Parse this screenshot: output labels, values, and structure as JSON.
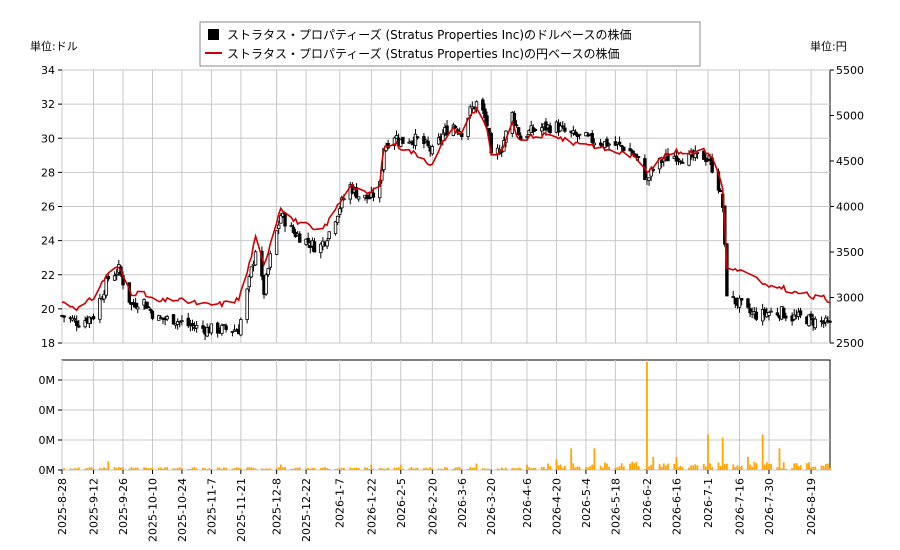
{
  "legend": {
    "usd_label": "ストラタス・プロパティーズ (Stratus Properties Inc)のドルベースの株価",
    "jpy_label": "ストラタス・プロパティーズ (Stratus Properties Inc)の円ベースの株価"
  },
  "units": {
    "left": "単位:ドル",
    "right": "単位:円"
  },
  "colors": {
    "candle": "#000000",
    "jpy_line": "#cc0000",
    "volume": "#ffa500",
    "grid": "#c8c8c8"
  },
  "chart_data": [
    {
      "type": "candlestick+line",
      "x_range": [
        "2025-08-28",
        "2026-08-28"
      ],
      "y_left": {
        "ticks": [
          18,
          20,
          22,
          24,
          26,
          28,
          30,
          32,
          34
        ],
        "range": [
          18,
          34
        ]
      },
      "y_right": {
        "ticks": [
          2500,
          3000,
          3500,
          4000,
          4500,
          5000,
          5500
        ],
        "range": [
          2500,
          5500
        ]
      },
      "x_ticks": [
        "2025-8-28",
        "2025-9-12",
        "2025-9-26",
        "2025-10-10",
        "2025-10-24",
        "2025-11-7",
        "2025-11-21",
        "2025-12-8",
        "2025-12-22",
        "2026-1-7",
        "2026-1-22",
        "2026-2-5",
        "2026-2-20",
        "2026-3-6",
        "2026-3-20",
        "2026-4-6",
        "2026-4-20",
        "2026-5-4",
        "2026-5-18",
        "2026-6-2",
        "2026-6-16",
        "2026-7-1",
        "2026-7-16",
        "2026-7-30",
        "2026-8-19"
      ],
      "usd_close_anchors": [
        [
          "2025-08-28",
          19.6
        ],
        [
          "2025-09-05",
          19.2
        ],
        [
          "2025-09-12",
          19.6
        ],
        [
          "2025-09-19",
          21.8
        ],
        [
          "2025-09-24",
          22.3
        ],
        [
          "2025-09-30",
          20.2
        ],
        [
          "2025-10-05",
          20.6
        ],
        [
          "2025-10-12",
          19.4
        ],
        [
          "2025-10-20",
          19.4
        ],
        [
          "2025-10-28",
          19.0
        ],
        [
          "2025-11-05",
          18.8
        ],
        [
          "2025-11-12",
          18.8
        ],
        [
          "2025-11-20",
          18.8
        ],
        [
          "2025-11-24",
          21.0
        ],
        [
          "2025-11-28",
          23.5
        ],
        [
          "2025-12-02",
          21.0
        ],
        [
          "2025-12-05",
          23.0
        ],
        [
          "2025-12-10",
          25.5
        ],
        [
          "2025-12-16",
          24.5
        ],
        [
          "2025-12-22",
          24.0
        ],
        [
          "2025-12-28",
          23.5
        ],
        [
          "2026-01-02",
          24.5
        ],
        [
          "2026-01-07",
          26.0
        ],
        [
          "2026-01-12",
          27.2
        ],
        [
          "2026-01-17",
          26.5
        ],
        [
          "2026-01-22",
          26.5
        ],
        [
          "2026-01-26",
          27.2
        ],
        [
          "2026-01-28",
          29.5
        ],
        [
          "2026-02-02",
          30.2
        ],
        [
          "2026-02-05",
          29.8
        ],
        [
          "2026-02-10",
          30.0
        ],
        [
          "2026-02-15",
          29.8
        ],
        [
          "2026-02-20",
          29.2
        ],
        [
          "2026-02-26",
          30.4
        ],
        [
          "2026-03-02",
          30.8
        ],
        [
          "2026-03-06",
          30.4
        ],
        [
          "2026-03-10",
          31.6
        ],
        [
          "2026-03-14",
          32.2
        ],
        [
          "2026-03-18",
          30.8
        ],
        [
          "2026-03-20",
          28.8
        ],
        [
          "2026-03-25",
          29.5
        ],
        [
          "2026-03-30",
          31.4
        ],
        [
          "2026-04-03",
          30.0
        ],
        [
          "2026-04-06",
          30.3
        ],
        [
          "2026-04-12",
          30.6
        ],
        [
          "2026-04-20",
          30.7
        ],
        [
          "2026-04-26",
          30.2
        ],
        [
          "2026-05-04",
          30.0
        ],
        [
          "2026-05-10",
          29.8
        ],
        [
          "2026-05-18",
          29.6
        ],
        [
          "2026-05-24",
          29.4
        ],
        [
          "2026-05-30",
          28.5
        ],
        [
          "2026-06-02",
          27.5
        ],
        [
          "2026-06-05",
          28.2
        ],
        [
          "2026-06-10",
          28.8
        ],
        [
          "2026-06-16",
          29.0
        ],
        [
          "2026-06-22",
          28.8
        ],
        [
          "2026-06-28",
          29.0
        ],
        [
          "2026-07-01",
          28.8
        ],
        [
          "2026-07-05",
          27.8
        ],
        [
          "2026-07-08",
          26.0
        ],
        [
          "2026-07-10",
          21.0
        ],
        [
          "2026-07-13",
          20.5
        ],
        [
          "2026-07-16",
          20.3
        ],
        [
          "2026-07-20",
          19.8
        ],
        [
          "2026-07-25",
          19.6
        ],
        [
          "2026-07-30",
          19.8
        ],
        [
          "2026-08-05",
          19.8
        ],
        [
          "2026-08-10",
          19.5
        ],
        [
          "2026-08-15",
          19.5
        ],
        [
          "2026-08-20",
          19.3
        ],
        [
          "2026-08-25",
          19.2
        ],
        [
          "2026-08-28",
          19.0
        ]
      ],
      "jpy_anchors": [
        [
          "2025-08-28",
          2950
        ],
        [
          "2025-09-05",
          2880
        ],
        [
          "2025-09-12",
          3000
        ],
        [
          "2025-09-19",
          3280
        ],
        [
          "2025-09-24",
          3330
        ],
        [
          "2025-09-30",
          3050
        ],
        [
          "2025-10-05",
          3050
        ],
        [
          "2025-10-12",
          2950
        ],
        [
          "2025-10-20",
          2980
        ],
        [
          "2025-10-28",
          2950
        ],
        [
          "2025-11-05",
          2920
        ],
        [
          "2025-11-12",
          2930
        ],
        [
          "2025-11-20",
          2980
        ],
        [
          "2025-11-24",
          3280
        ],
        [
          "2025-11-28",
          3650
        ],
        [
          "2025-12-02",
          3350
        ],
        [
          "2025-12-05",
          3600
        ],
        [
          "2025-12-10",
          4000
        ],
        [
          "2025-12-16",
          3850
        ],
        [
          "2025-12-22",
          3800
        ],
        [
          "2025-12-28",
          3700
        ],
        [
          "2026-01-02",
          3850
        ],
        [
          "2026-01-07",
          4050
        ],
        [
          "2026-01-12",
          4250
        ],
        [
          "2026-01-17",
          4150
        ],
        [
          "2026-01-22",
          4150
        ],
        [
          "2026-01-26",
          4250
        ],
        [
          "2026-01-28",
          4650
        ],
        [
          "2026-02-02",
          4700
        ],
        [
          "2026-02-05",
          4650
        ],
        [
          "2026-02-10",
          4600
        ],
        [
          "2026-02-15",
          4550
        ],
        [
          "2026-02-20",
          4450
        ],
        [
          "2026-02-26",
          4750
        ],
        [
          "2026-03-02",
          4850
        ],
        [
          "2026-03-06",
          4800
        ],
        [
          "2026-03-10",
          5000
        ],
        [
          "2026-03-14",
          5100
        ],
        [
          "2026-03-18",
          4850
        ],
        [
          "2026-03-20",
          4550
        ],
        [
          "2026-03-25",
          4600
        ],
        [
          "2026-03-30",
          4900
        ],
        [
          "2026-04-03",
          4700
        ],
        [
          "2026-04-06",
          4750
        ],
        [
          "2026-04-12",
          4780
        ],
        [
          "2026-04-20",
          4780
        ],
        [
          "2026-04-26",
          4700
        ],
        [
          "2026-05-04",
          4700
        ],
        [
          "2026-05-10",
          4650
        ],
        [
          "2026-05-18",
          4600
        ],
        [
          "2026-05-24",
          4580
        ],
        [
          "2026-05-30",
          4500
        ],
        [
          "2026-06-02",
          4400
        ],
        [
          "2026-06-05",
          4450
        ],
        [
          "2026-06-10",
          4550
        ],
        [
          "2026-06-16",
          4600
        ],
        [
          "2026-06-22",
          4600
        ],
        [
          "2026-06-28",
          4620
        ],
        [
          "2026-07-01",
          4600
        ],
        [
          "2026-07-05",
          4450
        ],
        [
          "2026-07-08",
          4200
        ],
        [
          "2026-07-10",
          3350
        ],
        [
          "2026-07-13",
          3300
        ],
        [
          "2026-07-16",
          3300
        ],
        [
          "2026-07-20",
          3250
        ],
        [
          "2026-07-25",
          3200
        ],
        [
          "2026-07-30",
          3100
        ],
        [
          "2026-08-05",
          3120
        ],
        [
          "2026-08-10",
          3050
        ],
        [
          "2026-08-15",
          3050
        ],
        [
          "2026-08-20",
          3000
        ],
        [
          "2026-08-25",
          3000
        ],
        [
          "2026-08-28",
          2950
        ]
      ]
    },
    {
      "type": "bar",
      "series_role": "volume",
      "y_ticks": [
        "0M",
        "0M",
        "0M",
        "0M"
      ],
      "relative_volume": [
        [
          "2025-09-19",
          0.08
        ],
        [
          "2025-12-10",
          0.05
        ],
        [
          "2026-01-22",
          0.05
        ],
        [
          "2026-02-05",
          0.05
        ],
        [
          "2026-03-13",
          0.06
        ],
        [
          "2026-04-06",
          0.05
        ],
        [
          "2026-04-16",
          0.06
        ],
        [
          "2026-04-20",
          0.1
        ],
        [
          "2026-04-27",
          0.2
        ],
        [
          "2026-05-08",
          0.2
        ],
        [
          "2026-05-13",
          0.07
        ],
        [
          "2026-05-24",
          0.07
        ],
        [
          "2026-05-30",
          0.3
        ],
        [
          "2026-06-02",
          1.0
        ],
        [
          "2026-06-05",
          0.12
        ],
        [
          "2026-06-16",
          0.12
        ],
        [
          "2026-07-01",
          0.33
        ],
        [
          "2026-07-05",
          0.4
        ],
        [
          "2026-07-08",
          0.3
        ],
        [
          "2026-07-12",
          0.18
        ],
        [
          "2026-07-20",
          0.12
        ],
        [
          "2026-07-27",
          0.33
        ],
        [
          "2026-08-02",
          0.75
        ],
        [
          "2026-08-04",
          0.2
        ]
      ]
    }
  ]
}
